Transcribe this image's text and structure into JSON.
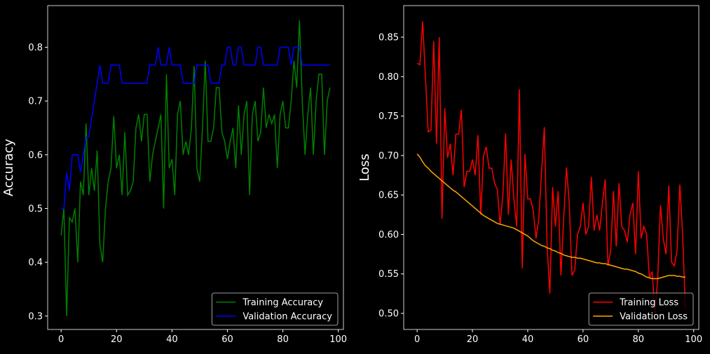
{
  "chart_data": [
    {
      "type": "line",
      "ylabel": "Accuracy",
      "legend": "lower right",
      "x": [
        0,
        1,
        2,
        3,
        4,
        5,
        6,
        7,
        8,
        9,
        10,
        11,
        12,
        13,
        14,
        15,
        16,
        17,
        18,
        19,
        20,
        21,
        22,
        23,
        24,
        25,
        26,
        27,
        28,
        29,
        30,
        31,
        32,
        33,
        34,
        35,
        36,
        37,
        38,
        39,
        40,
        41,
        42,
        43,
        44,
        45,
        46,
        47,
        48,
        49,
        50,
        51,
        52,
        53,
        54,
        55,
        56,
        57,
        58,
        59,
        60,
        61,
        62,
        63,
        64,
        65,
        66,
        67,
        68,
        69,
        70,
        71,
        72,
        73,
        74,
        75,
        76,
        77,
        78,
        79,
        80,
        81,
        82,
        83,
        84,
        85,
        86,
        87,
        88,
        89,
        90,
        91,
        92,
        93,
        94,
        95,
        96,
        97
      ],
      "xlim": [
        -4.85,
        101.85
      ],
      "xticks": [
        0,
        20,
        40,
        60,
        80,
        100
      ],
      "ylim": [
        0.275,
        0.8775
      ],
      "yticks": [
        0.3,
        0.4,
        0.5,
        0.6,
        0.7,
        0.8
      ],
      "series": [
        {
          "name": "Training Accuracy",
          "color": "#008000",
          "values": [
            0.45,
            0.5,
            0.3,
            0.483,
            0.475,
            0.5,
            0.4,
            0.55,
            0.525,
            0.658,
            0.525,
            0.575,
            0.533,
            0.608,
            0.433,
            0.4,
            0.5,
            0.55,
            0.575,
            0.672,
            0.575,
            0.6,
            0.525,
            0.642,
            0.525,
            0.533,
            0.55,
            0.65,
            0.675,
            0.625,
            0.675,
            0.675,
            0.55,
            0.6,
            0.625,
            0.65,
            0.675,
            0.5,
            0.75,
            0.575,
            0.592,
            0.525,
            0.675,
            0.7,
            0.6,
            0.625,
            0.6,
            0.65,
            0.765,
            0.575,
            0.55,
            0.65,
            0.775,
            0.625,
            0.625,
            0.65,
            0.725,
            0.725,
            0.642,
            0.625,
            0.592,
            0.625,
            0.65,
            0.575,
            0.692,
            0.6,
            0.675,
            0.7,
            0.525,
            0.675,
            0.7,
            0.625,
            0.642,
            0.725,
            0.65,
            0.675,
            0.658,
            0.675,
            0.575,
            0.675,
            0.7,
            0.65,
            0.65,
            0.7,
            0.775,
            0.725,
            0.85,
            0.7,
            0.6,
            0.675,
            0.725,
            0.6,
            0.7,
            0.75,
            0.75,
            0.6,
            0.7,
            0.725
          ]
        },
        {
          "name": "Validation Accuracy",
          "color": "#0000ff",
          "values": [
            0.5,
            0.5,
            0.567,
            0.533,
            0.6,
            0.6,
            0.6,
            0.567,
            0.6,
            0.633,
            0.633,
            0.667,
            0.7,
            0.733,
            0.767,
            0.733,
            0.733,
            0.733,
            0.767,
            0.767,
            0.767,
            0.767,
            0.733,
            0.733,
            0.733,
            0.733,
            0.733,
            0.733,
            0.733,
            0.733,
            0.733,
            0.733,
            0.767,
            0.767,
            0.767,
            0.8,
            0.767,
            0.767,
            0.767,
            0.8,
            0.767,
            0.767,
            0.767,
            0.767,
            0.733,
            0.733,
            0.733,
            0.733,
            0.733,
            0.767,
            0.767,
            0.767,
            0.767,
            0.767,
            0.733,
            0.733,
            0.733,
            0.733,
            0.767,
            0.767,
            0.8,
            0.8,
            0.767,
            0.767,
            0.8,
            0.8,
            0.767,
            0.767,
            0.767,
            0.767,
            0.767,
            0.8,
            0.8,
            0.767,
            0.767,
            0.767,
            0.767,
            0.767,
            0.767,
            0.8,
            0.8,
            0.8,
            0.8,
            0.767,
            0.8,
            0.8,
            0.8,
            0.767,
            0.767,
            0.767,
            0.767,
            0.767,
            0.767,
            0.767,
            0.767,
            0.767,
            0.767,
            0.767
          ]
        }
      ]
    },
    {
      "type": "line",
      "ylabel": "Loss",
      "legend": "lower right",
      "x": [
        0,
        1,
        2,
        3,
        4,
        5,
        6,
        7,
        8,
        9,
        10,
        11,
        12,
        13,
        14,
        15,
        16,
        17,
        18,
        19,
        20,
        21,
        22,
        23,
        24,
        25,
        26,
        27,
        28,
        29,
        30,
        31,
        32,
        33,
        34,
        35,
        36,
        37,
        38,
        39,
        40,
        41,
        42,
        43,
        44,
        45,
        46,
        47,
        48,
        49,
        50,
        51,
        52,
        53,
        54,
        55,
        56,
        57,
        58,
        59,
        60,
        61,
        62,
        63,
        64,
        65,
        66,
        67,
        68,
        69,
        70,
        71,
        72,
        73,
        74,
        75,
        76,
        77,
        78,
        79,
        80,
        81,
        82,
        83,
        84,
        85,
        86,
        87,
        88,
        89,
        90,
        91,
        92,
        93,
        94,
        95,
        96,
        97
      ],
      "xlim": [
        -4.85,
        101.85
      ],
      "xticks": [
        0,
        20,
        40,
        60,
        80,
        100
      ],
      "ylim": [
        0.4796,
        0.89
      ],
      "yticks": [
        {
          "value": 0.5,
          "label": "0.50"
        },
        0.55,
        {
          "value": 0.6,
          "label": "0.60"
        },
        0.65,
        {
          "value": 0.7,
          "label": "0.70"
        },
        0.75,
        {
          "value": 0.8,
          "label": "0.80"
        },
        0.85
      ],
      "series": [
        {
          "name": "Training Loss",
          "color": "#ff0000",
          "values": [
            0.817,
            0.815,
            0.87,
            0.8,
            0.73,
            0.732,
            0.845,
            0.715,
            0.85,
            0.62,
            0.76,
            0.697,
            0.715,
            0.675,
            0.727,
            0.727,
            0.758,
            0.66,
            0.68,
            0.68,
            0.695,
            0.675,
            0.726,
            0.625,
            0.7,
            0.711,
            0.684,
            0.684,
            0.665,
            0.657,
            0.612,
            0.65,
            0.728,
            0.625,
            0.695,
            0.645,
            0.61,
            0.784,
            0.557,
            0.702,
            0.645,
            0.645,
            0.63,
            0.595,
            0.62,
            0.68,
            0.736,
            0.585,
            0.525,
            0.66,
            0.61,
            0.655,
            0.548,
            0.62,
            0.685,
            0.64,
            0.548,
            0.555,
            0.6,
            0.61,
            0.64,
            0.6,
            0.61,
            0.673,
            0.605,
            0.625,
            0.605,
            0.64,
            0.67,
            0.56,
            0.58,
            0.655,
            0.585,
            0.665,
            0.61,
            0.605,
            0.59,
            0.625,
            0.64,
            0.575,
            0.68,
            0.595,
            0.61,
            0.6,
            0.545,
            0.553,
            0.5,
            0.545,
            0.637,
            0.595,
            0.575,
            0.662,
            0.565,
            0.56,
            0.58,
            0.663,
            0.6,
            0.505
          ]
        },
        {
          "name": "Validation Loss",
          "color": "#ffa500",
          "values": [
            0.702,
            0.698,
            0.692,
            0.687,
            0.684,
            0.68,
            0.677,
            0.674,
            0.671,
            0.668,
            0.665,
            0.662,
            0.659,
            0.656,
            0.654,
            0.651,
            0.648,
            0.645,
            0.642,
            0.639,
            0.636,
            0.633,
            0.63,
            0.627,
            0.624,
            0.622,
            0.62,
            0.618,
            0.616,
            0.614,
            0.613,
            0.612,
            0.611,
            0.61,
            0.609,
            0.608,
            0.606,
            0.604,
            0.602,
            0.6,
            0.598,
            0.595,
            0.592,
            0.59,
            0.588,
            0.586,
            0.585,
            0.583,
            0.582,
            0.58,
            0.579,
            0.577,
            0.576,
            0.574,
            0.573,
            0.572,
            0.571,
            0.571,
            0.57,
            0.57,
            0.569,
            0.568,
            0.567,
            0.566,
            0.565,
            0.564,
            0.564,
            0.563,
            0.563,
            0.562,
            0.561,
            0.56,
            0.559,
            0.558,
            0.557,
            0.556,
            0.556,
            0.555,
            0.554,
            0.553,
            0.551,
            0.55,
            0.548,
            0.546,
            0.545,
            0.544,
            0.544,
            0.544,
            0.545,
            0.546,
            0.547,
            0.548,
            0.548,
            0.548,
            0.547,
            0.547,
            0.546,
            0.546
          ]
        }
      ]
    }
  ]
}
